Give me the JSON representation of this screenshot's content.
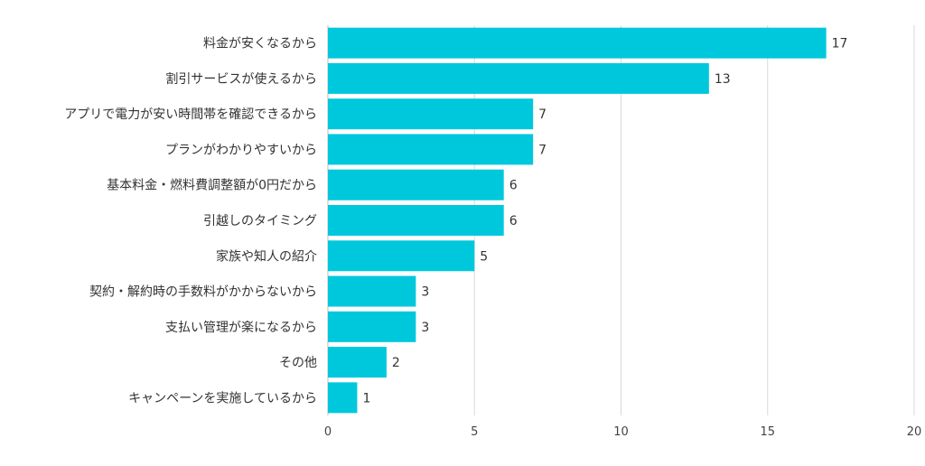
{
  "chart_data": {
    "type": "bar",
    "orientation": "horizontal",
    "categories": [
      "料金が安くなるから",
      "割引サービスが使えるから",
      "アプリで電力が安い時間帯を確認できるから",
      "プランがわかりやすいから",
      "基本料金・燃料費調整額が0円だから",
      "引越しのタイミング",
      "家族や知人の紹介",
      "契約・解約時の手数料がかからないから",
      "支払い管理が楽になるから",
      "その他",
      "キャンペーンを実施しているから"
    ],
    "values": [
      17,
      13,
      7,
      7,
      6,
      6,
      5,
      3,
      3,
      2,
      1
    ],
    "title": "",
    "xlabel": "",
    "ylabel": "",
    "xlim": [
      0,
      20
    ],
    "x_ticks": [
      0,
      5,
      10,
      15,
      20
    ],
    "grid": true,
    "legend": "none",
    "bar_color": "#00c8dc"
  }
}
